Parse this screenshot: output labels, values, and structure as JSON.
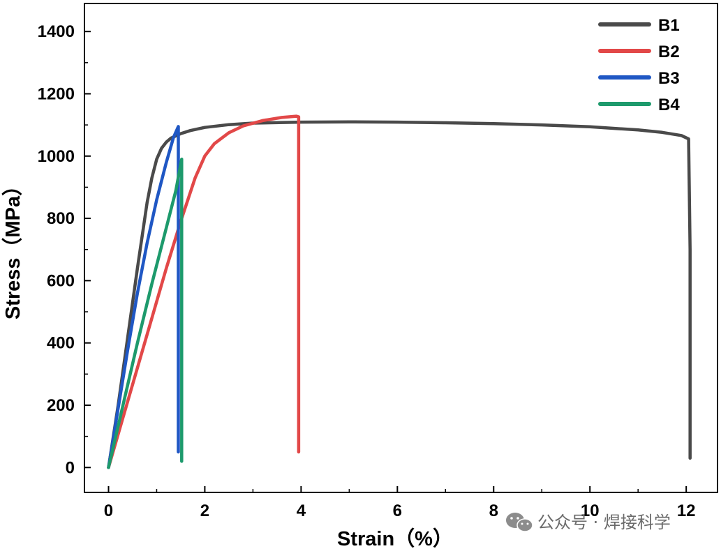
{
  "chart_data": {
    "type": "line",
    "title": "",
    "xlabel": "Strain（%）",
    "ylabel": "Stress（MPa）",
    "xlim": [
      -0.5,
      12.65
    ],
    "ylim": [
      -80,
      1490
    ],
    "xticks": [
      0,
      2,
      4,
      6,
      8,
      10,
      12
    ],
    "yticks": [
      0,
      200,
      400,
      600,
      800,
      1000,
      1200,
      1400
    ],
    "xtick_labels": [
      "0",
      "2",
      "4",
      "6",
      "8",
      "10",
      "12"
    ],
    "ytick_labels": [
      "0",
      "200",
      "400",
      "600",
      "800",
      "1000",
      "1200",
      "1400"
    ],
    "legend_position": "top-right",
    "series": [
      {
        "name": "B1",
        "color": "#4a4a4a",
        "x": [
          0,
          0.2,
          0.4,
          0.6,
          0.8,
          0.9,
          1.0,
          1.1,
          1.2,
          1.3,
          1.5,
          1.7,
          2.0,
          2.5,
          3.0,
          4.0,
          5.0,
          6.0,
          7.0,
          8.0,
          9.0,
          10.0,
          11.0,
          11.5,
          11.9,
          12.05,
          12.08,
          12.08
        ],
        "y": [
          0,
          200,
          420,
          640,
          850,
          930,
          990,
          1025,
          1045,
          1058,
          1072,
          1082,
          1092,
          1101,
          1106,
          1109,
          1110,
          1109,
          1107,
          1104,
          1100,
          1094,
          1084,
          1076,
          1066,
          1055,
          700,
          30
        ]
      },
      {
        "name": "B2",
        "color": "#e24848",
        "x": [
          0,
          0.3,
          0.6,
          0.9,
          1.2,
          1.5,
          1.8,
          2.0,
          2.2,
          2.5,
          2.8,
          3.2,
          3.6,
          3.9,
          3.95,
          3.95,
          3.95
        ],
        "y": [
          0,
          160,
          320,
          480,
          640,
          790,
          930,
          1000,
          1040,
          1075,
          1097,
          1114,
          1124,
          1128,
          1126,
          600,
          50
        ]
      },
      {
        "name": "B3",
        "color": "#1f57c4",
        "x": [
          0,
          0.2,
          0.4,
          0.6,
          0.8,
          1.0,
          1.2,
          1.35,
          1.45,
          1.45,
          1.45
        ],
        "y": [
          0,
          190,
          380,
          560,
          720,
          860,
          980,
          1060,
          1095,
          600,
          50
        ]
      },
      {
        "name": "B4",
        "color": "#1d9a6c",
        "x": [
          0,
          0.3,
          0.6,
          0.9,
          1.2,
          1.4,
          1.52,
          1.52,
          1.52
        ],
        "y": [
          0,
          200,
          400,
          590,
          770,
          890,
          990,
          500,
          20
        ]
      }
    ]
  },
  "watermark": {
    "text": "公众号 · 焊接科学",
    "icon": "wechat-icon"
  }
}
